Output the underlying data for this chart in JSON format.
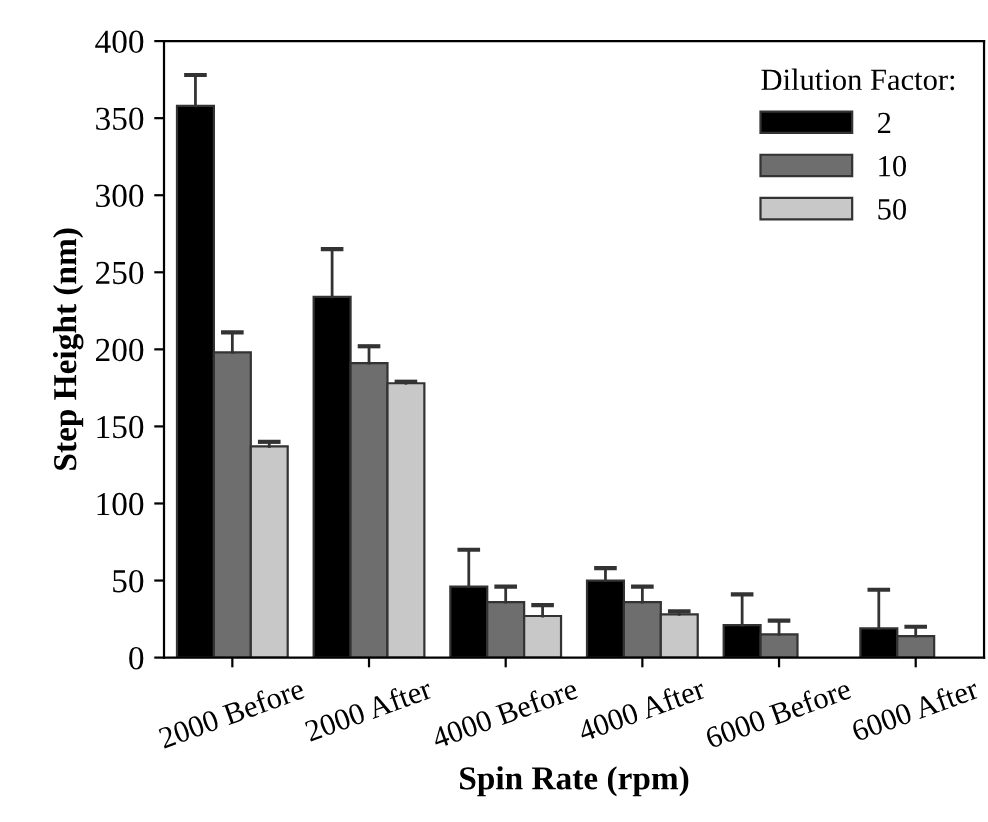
{
  "chart_data": {
    "type": "bar",
    "xlabel": "Spin Rate (rpm)",
    "ylabel": "Step Height (nm)",
    "legend_title": "Dilution Factor:",
    "categories": [
      "2000 Before",
      "2000 After",
      "4000 Before",
      "4000 After",
      "6000 Before",
      "6000 After"
    ],
    "series": [
      {
        "name": "2",
        "color": "#000000",
        "values": [
          358,
          234,
          46,
          50,
          21,
          19
        ],
        "errors": [
          [
            358,
            378
          ],
          [
            234,
            265
          ],
          [
            46,
            70
          ],
          [
            50,
            58
          ],
          [
            21,
            41
          ],
          [
            19,
            44
          ]
        ]
      },
      {
        "name": "10",
        "color": "#6e6e6e",
        "values": [
          198,
          191,
          36,
          36,
          15,
          14
        ],
        "errors": [
          [
            198,
            211
          ],
          [
            191,
            202
          ],
          [
            36,
            46
          ],
          [
            36,
            46
          ],
          [
            15,
            24
          ],
          [
            14,
            20
          ]
        ]
      },
      {
        "name": "50",
        "color": "#c8c8c8",
        "values": [
          137,
          178,
          27,
          28,
          null,
          null
        ],
        "errors": [
          [
            137,
            140
          ],
          [
            178,
            179
          ],
          [
            27,
            34
          ],
          [
            28,
            30
          ],
          null,
          null
        ]
      }
    ],
    "ylim": [
      0,
      400
    ],
    "yticks": [
      0,
      50,
      100,
      150,
      200,
      250,
      300,
      350,
      400
    ],
    "grid": false,
    "legend": "top right"
  }
}
